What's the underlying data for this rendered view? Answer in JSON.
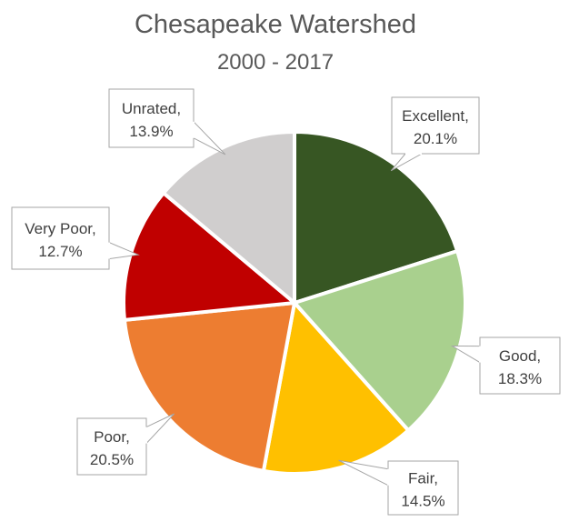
{
  "chart_data": {
    "type": "pie",
    "title": "Chesapeake Watershed",
    "subtitle": "2000 - 2017",
    "slices": [
      {
        "label": "Excellent",
        "value": 20.1,
        "display": "20.1%",
        "color": "#375623"
      },
      {
        "label": "Good",
        "value": 18.3,
        "display": "18.3%",
        "color": "#a9d08e"
      },
      {
        "label": "Fair",
        "value": 14.5,
        "display": "14.5%",
        "color": "#ffc000"
      },
      {
        "label": "Poor",
        "value": 20.5,
        "display": "20.5%",
        "color": "#ed7d31"
      },
      {
        "label": "Very Poor",
        "value": 12.7,
        "display": "12.7%",
        "color": "#c00000"
      },
      {
        "label": "Unrated",
        "value": 13.9,
        "display": "13.9%",
        "color": "#d0cece"
      }
    ],
    "start_angle": "12 o'clock",
    "direction": "clockwise",
    "legend": "none",
    "data_labels": "callouts"
  }
}
